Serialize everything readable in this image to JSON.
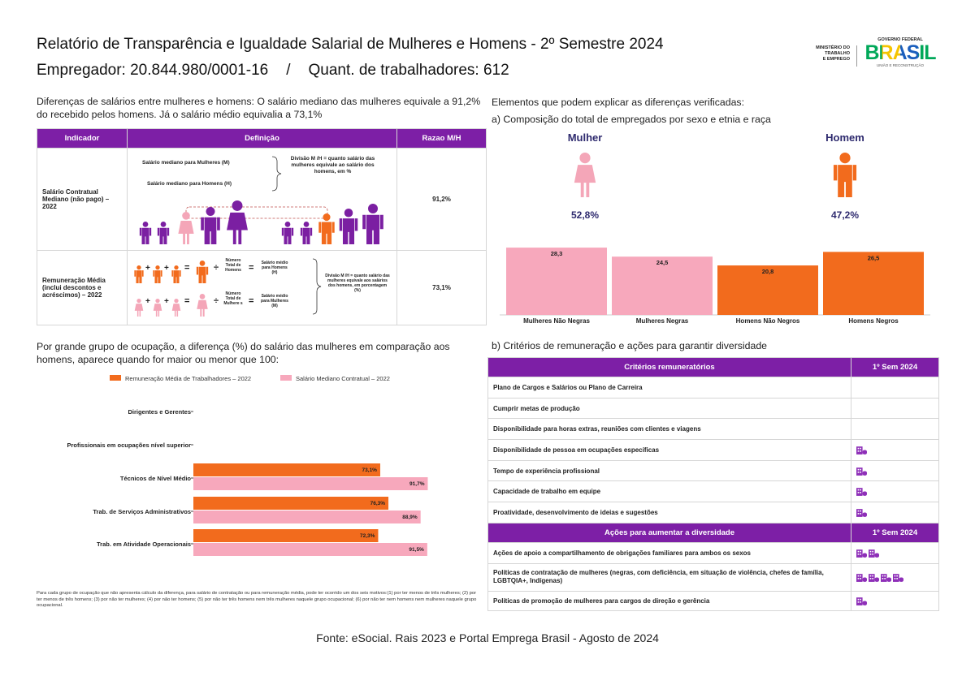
{
  "header": {
    "title": "Relatório de Transparência e Igualdade Salarial de Mulheres e Homens - 2º Semestre 2024",
    "employer": "Empregador: 20.844.980/0001-16",
    "separator": "/",
    "workers": "Quant. de trabalhadores: 612",
    "logo": {
      "ministry_lines": [
        "MINISTÉRIO DO",
        "TRABALHO",
        "E EMPREGO"
      ],
      "government": "GOVERNO FEDERAL",
      "brand": "BRASIL",
      "slogan": "UNIÃO E RECONSTRUÇÃO"
    }
  },
  "salary": {
    "intro": "Diferenças de salários entre mulheres e homens: O salário mediano das mulheres equivale a 91,2% do recebido pelos homens. Já o salário médio equivalia a 73,1%",
    "table": {
      "headers": [
        "Indicador",
        "Definição",
        "Razao M/H"
      ],
      "rows": [
        {
          "indicator": "Salário Contratual Mediano (não pago) – 2022",
          "ratio": "91,2%",
          "definition": {
            "women": "Salário mediano para Mulheres (M)",
            "men": "Salário mediano para Homens (H)",
            "division": "Divisão M /H = quanto salário das mulheres equivale ao salário dos homens, em %"
          }
        },
        {
          "indicator": "Remuneração Média (inclui descontos e acréscimos) – 2022",
          "ratio": "73,1%",
          "definition": {
            "plus": "+",
            "equals": "=",
            "divide": "÷",
            "men_count": "Número Total de Homens",
            "men_avg": "Salário médio para Homens (H)",
            "women_count": "Número Total de Mulhere s",
            "women_avg": "Salário médio para Mulheres (M)",
            "division": "Divisão M /H = quanto salário das mulheres equivale aos salários dos homens, em porcentagem (%)"
          }
        }
      ]
    }
  },
  "composition": {
    "heading": "Elementos que podem explicar as diferenças verificadas:",
    "subheading": "a) Composição do total de empregados por sexo e etnia e raça",
    "women": {
      "label": "Mulher",
      "share": "52,8%"
    },
    "men": {
      "label": "Homem",
      "share": "47,2%"
    }
  },
  "occupation": {
    "intro": "Por grande grupo de ocupação, a diferença (%) do salário das mulheres em comparação aos homens, aparece quando for maior ou menor que 100:",
    "footnote": "Para cada grupo de ocupação que não apresenta cálculo da diferença, para salário de contratação ou para remuneração média, pode ter ocorrido um dos seis motivos:(1) por ter menos de três mulheres; (2) por ter menos de três homens; (3) por não ter mulheres; (4) por não ter homens; (5) por não ter três homens nem três mulheres naquele grupo ocupacional; (6) por não ter nem homens nem mulheres naquele grupo ocupacional."
  },
  "chart_data": [
    {
      "type": "bar",
      "categories": [
        "Mulheres Não Negras",
        "Mulheres Negras",
        "Homens Não Negros",
        "Homens Negros"
      ],
      "values": [
        28.3,
        24.5,
        20.8,
        26.5
      ],
      "value_labels": [
        "28,3",
        "24,5",
        "20,8",
        "26,5"
      ],
      "colors": [
        "#f7a8bc",
        "#f7a8bc",
        "#f26b1d",
        "#f26b1d"
      ]
    },
    {
      "type": "hbar",
      "categories": [
        "Dirigentes e Gerentes",
        "Profissionais em ocupações nível superior",
        "Técnicos de Nível Médio",
        "Trab. de Serviços Administrativos",
        "Trab. em Atividade Operacionais"
      ],
      "series": [
        {
          "name": "Remuneração Média de Trabalhadores – 2022",
          "color": "#f26b1d",
          "values": [
            null,
            null,
            73.1,
            76.3,
            72.3
          ],
          "value_labels": [
            null,
            null,
            "73,1%",
            "76,3%",
            "72,3%"
          ]
        },
        {
          "name": "Salário Mediano Contratual – 2022",
          "color": "#f7a8bc",
          "values": [
            null,
            null,
            91.7,
            88.9,
            91.5
          ],
          "value_labels": [
            null,
            null,
            "91,7%",
            "88,9%",
            "91,5%"
          ]
        }
      ]
    }
  ],
  "criteria": {
    "heading": "b) Critérios de remuneração e ações para garantir diversidade",
    "criteria_header": [
      "Critérios remuneratórios",
      "1º Sem 2024"
    ],
    "criteria": [
      "Plano de Cargos e Salários ou Plano de Carreira",
      "Cumprir metas de produção",
      "Disponibilidade para horas extras, reuniões com clientes e viagens",
      "Disponibilidade de pessoa em ocupações específicas",
      "Tempo de experiência profissional",
      "Capacidade de trabalho em equipe",
      "Proatividade, desenvolvimento de ideias e sugestões"
    ],
    "actions_header": [
      "Ações para aumentar a diversidade",
      "1º Sem 2024"
    ],
    "actions": [
      "Ações de apoio a compartilhamento de obrigações familiares para ambos os sexos",
      "Políticas de contratação de mulheres (negras, com deficiência, em situação de violência, chefes de família, LGBTQIA+, Indígenas)",
      "Políticas de promoção de mulheres para cargos de direção e gerência"
    ]
  },
  "footer": "Fonte: eSocial. Rais 2023 e Portal Emprega Brasil - Agosto de 2024"
}
